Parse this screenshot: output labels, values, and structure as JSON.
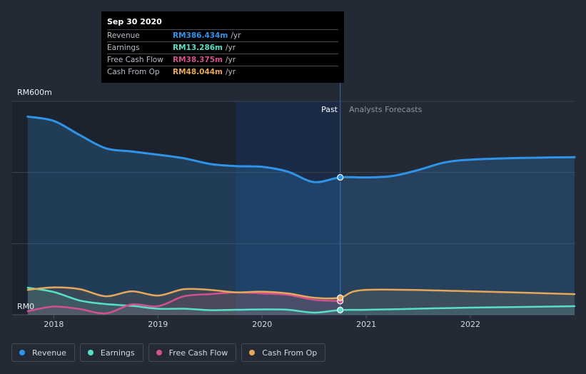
{
  "chart_data": {
    "type": "line",
    "title": "",
    "xlabel": "",
    "ylabel": "",
    "ylim": [
      0,
      600
    ],
    "y_axis_labels": {
      "top": "RM600m",
      "bottom": "RM0"
    },
    "x_ticks": [
      2018,
      2019,
      2020,
      2021,
      2022
    ],
    "x_tick_labels": [
      "2018",
      "2019",
      "2020",
      "2021",
      "2022"
    ],
    "x_range": [
      2017.6,
      2023.0
    ],
    "past_label": "Past",
    "forecast_label": "Analysts Forecasts",
    "divider_x": 2020.75,
    "shade_start_x": 2019.75,
    "series": [
      {
        "name": "Revenue",
        "color": "#2f94e8",
        "points": [
          [
            2017.75,
            557
          ],
          [
            2018.0,
            545
          ],
          [
            2018.25,
            505
          ],
          [
            2018.5,
            468
          ],
          [
            2018.75,
            459
          ],
          [
            2019.0,
            450
          ],
          [
            2019.25,
            440
          ],
          [
            2019.5,
            424
          ],
          [
            2019.75,
            418
          ],
          [
            2020.0,
            416
          ],
          [
            2020.25,
            402
          ],
          [
            2020.5,
            373
          ],
          [
            2020.75,
            386.4
          ],
          [
            2021.0,
            386
          ],
          [
            2021.25,
            390
          ],
          [
            2021.5,
            407
          ],
          [
            2021.75,
            428
          ],
          [
            2022.0,
            436
          ],
          [
            2022.5,
            441
          ],
          [
            2023.0,
            443
          ]
        ]
      },
      {
        "name": "Earnings",
        "color": "#58dfc8",
        "points": [
          [
            2017.75,
            76
          ],
          [
            2018.0,
            64
          ],
          [
            2018.25,
            40
          ],
          [
            2018.5,
            30
          ],
          [
            2018.75,
            25
          ],
          [
            2019.0,
            17
          ],
          [
            2019.25,
            17
          ],
          [
            2019.5,
            13
          ],
          [
            2019.75,
            14
          ],
          [
            2020.0,
            15
          ],
          [
            2020.25,
            14
          ],
          [
            2020.5,
            6
          ],
          [
            2020.75,
            13.3
          ],
          [
            2021.0,
            14
          ],
          [
            2021.5,
            17
          ],
          [
            2022.0,
            20
          ],
          [
            2023.0,
            24
          ]
        ]
      },
      {
        "name": "Free Cash Flow",
        "color": "#d4508e",
        "points": [
          [
            2017.75,
            10
          ],
          [
            2018.0,
            23
          ],
          [
            2018.25,
            16
          ],
          [
            2018.5,
            4
          ],
          [
            2018.75,
            29
          ],
          [
            2019.0,
            24
          ],
          [
            2019.25,
            52
          ],
          [
            2019.5,
            58
          ],
          [
            2019.75,
            63
          ],
          [
            2020.0,
            60
          ],
          [
            2020.25,
            56
          ],
          [
            2020.5,
            42
          ],
          [
            2020.75,
            38.4
          ]
        ]
      },
      {
        "name": "Cash From Op",
        "color": "#e7a75a",
        "points": [
          [
            2017.75,
            70
          ],
          [
            2018.0,
            77
          ],
          [
            2018.25,
            72
          ],
          [
            2018.5,
            52
          ],
          [
            2018.75,
            66
          ],
          [
            2019.0,
            54
          ],
          [
            2019.25,
            72
          ],
          [
            2019.5,
            70
          ],
          [
            2019.75,
            63
          ],
          [
            2020.0,
            65
          ],
          [
            2020.25,
            60
          ],
          [
            2020.5,
            48
          ],
          [
            2020.75,
            48
          ],
          [
            2021.0,
            70
          ],
          [
            2022.0,
            66
          ],
          [
            2023.0,
            58
          ]
        ]
      }
    ],
    "highlight": {
      "x": 2020.75,
      "values": [
        386.4,
        13.3,
        38.4,
        48.0
      ]
    }
  },
  "tooltip": {
    "date": "Sep 30 2020",
    "rows": [
      {
        "name": "Revenue",
        "value": "RM386.434m",
        "unit": "/yr",
        "color": "#2f94e8"
      },
      {
        "name": "Earnings",
        "value": "RM13.286m",
        "unit": "/yr",
        "color": "#58dfc8"
      },
      {
        "name": "Free Cash Flow",
        "value": "RM38.375m",
        "unit": "/yr",
        "color": "#d4508e"
      },
      {
        "name": "Cash From Op",
        "value": "RM48.044m",
        "unit": "/yr",
        "color": "#e7a75a"
      }
    ]
  },
  "legend": [
    {
      "label": "Revenue",
      "color": "#2f94e8"
    },
    {
      "label": "Earnings",
      "color": "#58dfc8"
    },
    {
      "label": "Free Cash Flow",
      "color": "#d4508e"
    },
    {
      "label": "Cash From Op",
      "color": "#e7a75a"
    }
  ]
}
